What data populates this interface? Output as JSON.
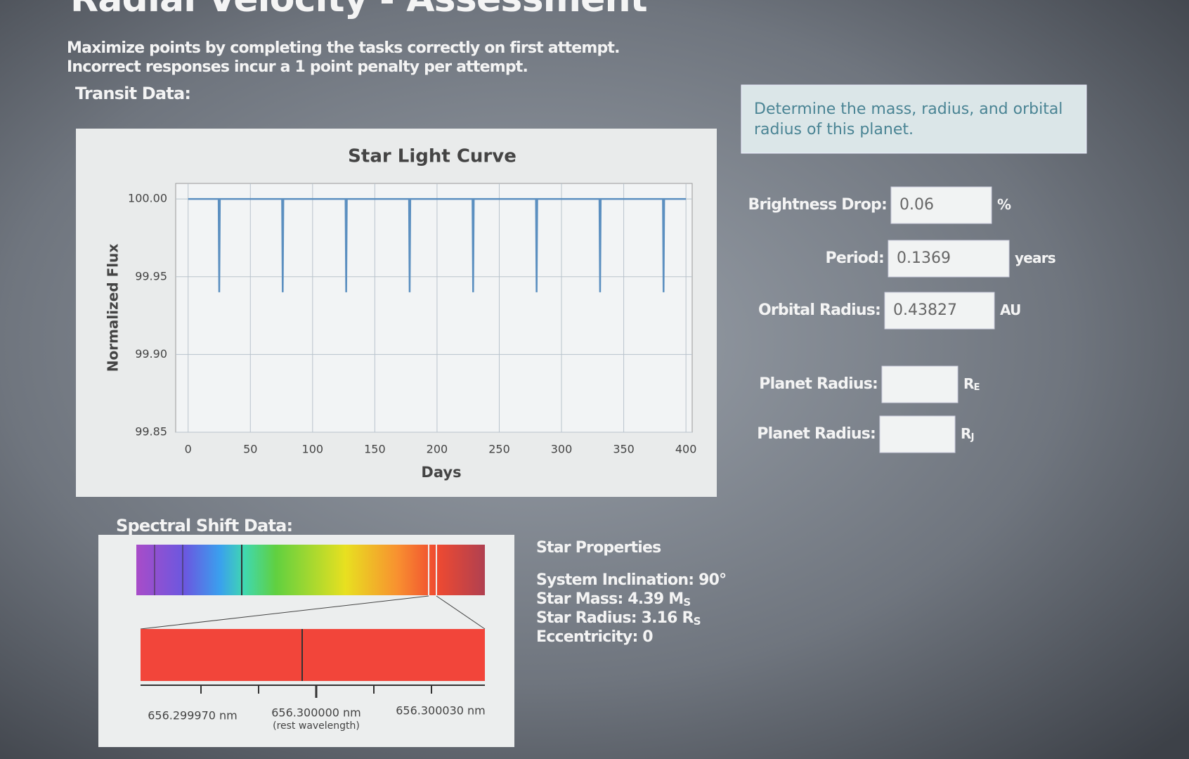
{
  "header": {
    "title": "Radial Velocity - Assessment"
  },
  "instructions": [
    "Maximize points by completing the tasks correctly on first attempt.",
    "Incorrect responses incur a 1 point penalty per attempt."
  ],
  "transit_label": "Transit Data:",
  "chart_data": {
    "type": "line",
    "title": "Star Light Curve",
    "x_label": "Days",
    "y_label": "Normalized Flux",
    "x": [
      0,
      24.5,
      25,
      25.5,
      75.5,
      76,
      76.5,
      126.5,
      127,
      127.5,
      177.5,
      178,
      178.5,
      228.5,
      229,
      229.5,
      279.5,
      280,
      280.5,
      330.5,
      331,
      331.5,
      381.5,
      382,
      382.5,
      400
    ],
    "values": [
      100.0,
      100.0,
      99.94,
      100.0,
      100.0,
      99.94,
      100.0,
      100.0,
      99.94,
      100.0,
      100.0,
      99.94,
      100.0,
      100.0,
      99.94,
      100.0,
      100.0,
      99.94,
      100.0,
      100.0,
      99.94,
      100.0,
      100.0,
      99.94,
      100.0,
      100.0
    ],
    "color": "#5b8fc0",
    "xlim": [
      -10,
      405
    ],
    "ylim": [
      99.85,
      100.01
    ],
    "xticks": [
      0,
      50,
      100,
      150,
      200,
      250,
      300,
      350,
      400
    ],
    "yticks": [
      {
        "value": 100,
        "label": "100.00"
      },
      {
        "value": 99.95,
        "label": "99.95"
      },
      {
        "value": 99.9,
        "label": "99.90"
      },
      {
        "value": 99.85,
        "label": "99.85"
      }
    ],
    "grid": true
  },
  "spectral": {
    "label": "Spectral Shift Data:",
    "left": "656.299970 nm",
    "center": "656.300000 nm",
    "center_note": "(rest wavelength)",
    "right": "656.300030 nm"
  },
  "star_properties": {
    "title": "Star Properties",
    "lines": [
      {
        "text": "System Inclination: 90°"
      },
      {
        "text": "Star Mass: 4.39 M",
        "sub": "S"
      },
      {
        "text": "Star Radius: 3.16 R",
        "sub": "S"
      },
      {
        "text": "Eccentricity: 0"
      }
    ]
  },
  "task": "Determine the mass, radius, and orbital radius of this planet.",
  "form": [
    {
      "label": "Brightness Drop:",
      "value": "0.06",
      "unit": "%"
    },
    {
      "label": "Period:",
      "value": "0.1369",
      "unit": "years"
    },
    {
      "label": "Orbital Radius:",
      "value": "0.43827",
      "unit": "AU"
    },
    {
      "label": "Planet Radius:",
      "unit": "R",
      "unit_sub": "E"
    },
    {
      "label": "Planet Radius:",
      "unit": "R",
      "unit_sub": "J"
    }
  ]
}
